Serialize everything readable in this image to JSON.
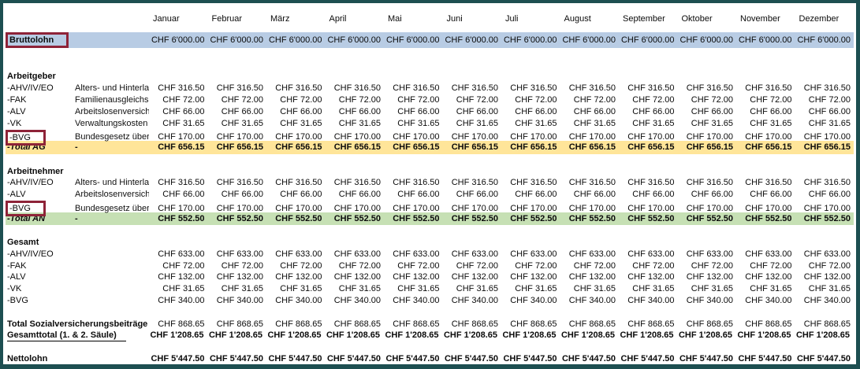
{
  "months": [
    "Januar",
    "Februar",
    "März",
    "April",
    "Mai",
    "Juni",
    "Juli",
    "August",
    "September",
    "Oktober",
    "November",
    "Dezember"
  ],
  "colors": {
    "frame_border": "#1d4f51",
    "bruttolohn_row_bg": "#b8cce4",
    "total_ag_row_bg": "#ffe599",
    "total_an_row_bg": "#c6e0b4",
    "highlight_box_border": "#8e2338"
  },
  "sheet": {
    "rows": [
      {
        "id": "bruttolohn",
        "kind": "brutto",
        "label": "Bruttolohn",
        "desc": "",
        "monthly": "CHF 6'000.00",
        "boxed": true
      },
      {
        "kind": "spacer"
      },
      {
        "kind": "spacer"
      },
      {
        "id": "arbeitgeber-header",
        "kind": "section",
        "label": "Arbeitgeber",
        "desc": ""
      },
      {
        "id": "ag-ahv-iv-eo",
        "kind": "data",
        "label": "-AHV/IV/EO",
        "desc": "Alters- und Hinterla",
        "monthly": "CHF 316.50"
      },
      {
        "id": "ag-fak",
        "kind": "data",
        "label": "-FAK",
        "desc": "Familienausgleichs",
        "monthly": "CHF 72.00"
      },
      {
        "id": "ag-alv",
        "kind": "data",
        "label": "-ALV",
        "desc": "Arbeitslosenversich",
        "monthly": "CHF 66.00"
      },
      {
        "id": "ag-vk",
        "kind": "data",
        "label": "-VK",
        "desc": "Verwaltungskosten",
        "monthly": "CHF 31.65"
      },
      {
        "id": "ag-bvg",
        "kind": "data",
        "label": "-BVG",
        "desc": "Bundesgesetz über",
        "monthly": "CHF 170.00",
        "boxed": true
      },
      {
        "id": "total-ag",
        "kind": "total-ag",
        "label": "-Total AG",
        "desc": "-",
        "monthly": "CHF 656.15"
      },
      {
        "kind": "spacer"
      },
      {
        "id": "arbeitnehmer-header",
        "kind": "section",
        "label": "Arbeitnehmer",
        "desc": ""
      },
      {
        "id": "an-ahv-iv-eo",
        "kind": "data",
        "label": "-AHV/IV/EO",
        "desc": "Alters- und Hinterla",
        "monthly": "CHF 316.50"
      },
      {
        "id": "an-alv",
        "kind": "data",
        "label": "-ALV",
        "desc": "Arbeitslosenversich",
        "monthly": "CHF 66.00"
      },
      {
        "id": "an-bvg",
        "kind": "data",
        "label": "-BVG",
        "desc": "Bundesgesetz über",
        "monthly": "CHF 170.00",
        "boxed": true
      },
      {
        "id": "total-an",
        "kind": "total-an",
        "label": "-Total AN",
        "desc": "-",
        "monthly": "CHF 552.50"
      },
      {
        "kind": "spacer"
      },
      {
        "id": "gesamt-header",
        "kind": "section",
        "label": "Gesamt",
        "desc": ""
      },
      {
        "id": "ges-ahv-iv-eo",
        "kind": "data",
        "label": "-AHV/IV/EO",
        "desc": "",
        "monthly": "CHF 633.00"
      },
      {
        "id": "ges-fak",
        "kind": "data",
        "label": "-FAK",
        "desc": "",
        "monthly": "CHF 72.00"
      },
      {
        "id": "ges-alv",
        "kind": "data",
        "label": "-ALV",
        "desc": "",
        "monthly": "CHF 132.00"
      },
      {
        "id": "ges-vk",
        "kind": "data",
        "label": "-VK",
        "desc": "",
        "monthly": "CHF 31.65"
      },
      {
        "id": "ges-bvg",
        "kind": "data",
        "label": "-BVG",
        "desc": "",
        "monthly": "CHF 340.00"
      },
      {
        "kind": "spacer"
      },
      {
        "id": "total-sozialversicherungsbeitraege",
        "kind": "sum",
        "wide": true,
        "label": "Total Sozialversicherungsbeiträge",
        "monthly": "CHF 868.65"
      },
      {
        "id": "gesamttotal",
        "kind": "grand",
        "wide": true,
        "ul": true,
        "label": "Gesamttotal (1. & 2. Säule)",
        "monthly": "CHF 1'208.65"
      },
      {
        "kind": "spacer"
      },
      {
        "id": "nettolohn",
        "kind": "netto",
        "wide": true,
        "label": "Nettolohn",
        "monthly": "CHF 5'447.50"
      }
    ]
  }
}
